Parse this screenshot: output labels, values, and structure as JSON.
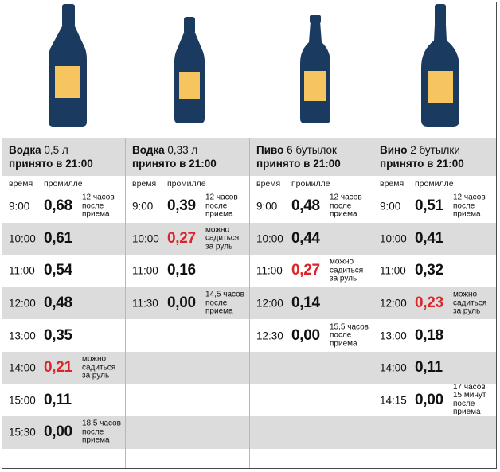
{
  "colors": {
    "bottle": "#1b3a5f",
    "label": "#f6c55f",
    "red": "#d9262b",
    "shade": "#dcdcdc"
  },
  "columns": [
    {
      "drink": "Водка",
      "amount": "0,5 л",
      "taken": "принято в 21:00",
      "col_time": "время",
      "col_promille": "промилле",
      "rows": [
        {
          "time": "9:00",
          "value": "0,68",
          "note": "12 часов после приема",
          "red": false
        },
        {
          "time": "10:00",
          "value": "0,61",
          "note": "",
          "red": false
        },
        {
          "time": "11:00",
          "value": "0,54",
          "note": "",
          "red": false
        },
        {
          "time": "12:00",
          "value": "0,48",
          "note": "",
          "red": false
        },
        {
          "time": "13:00",
          "value": "0,35",
          "note": "",
          "red": false
        },
        {
          "time": "14:00",
          "value": "0,21",
          "note": "можно садиться за руль",
          "red": true
        },
        {
          "time": "15:00",
          "value": "0,11",
          "note": "",
          "red": false
        },
        {
          "time": "15:30",
          "value": "0,00",
          "note": "18,5 часов после приема",
          "red": false
        }
      ]
    },
    {
      "drink": "Водка",
      "amount": "0,33 л",
      "taken": "принято в 21:00",
      "col_time": "время",
      "col_promille": "промилле",
      "rows": [
        {
          "time": "9:00",
          "value": "0,39",
          "note": "12 часов после приема",
          "red": false
        },
        {
          "time": "10:00",
          "value": "0,27",
          "note": "можно садиться за руль",
          "red": true
        },
        {
          "time": "11:00",
          "value": "0,16",
          "note": "",
          "red": false
        },
        {
          "time": "11:30",
          "value": "0,00",
          "note": "14,5 часов после приема",
          "red": false
        },
        {
          "time": "",
          "value": "",
          "note": "",
          "red": false
        },
        {
          "time": "",
          "value": "",
          "note": "",
          "red": false
        },
        {
          "time": "",
          "value": "",
          "note": "",
          "red": false
        },
        {
          "time": "",
          "value": "",
          "note": "",
          "red": false
        }
      ]
    },
    {
      "drink": "Пиво",
      "amount": "6 бутылок",
      "taken": "принято в 21:00",
      "col_time": "время",
      "col_promille": "промилле",
      "rows": [
        {
          "time": "9:00",
          "value": "0,48",
          "note": "12 часов после приема",
          "red": false
        },
        {
          "time": "10:00",
          "value": "0,44",
          "note": "",
          "red": false
        },
        {
          "time": "11:00",
          "value": "0,27",
          "note": "можно садиться за руль",
          "red": true
        },
        {
          "time": "12:00",
          "value": "0,14",
          "note": "",
          "red": false
        },
        {
          "time": "12:30",
          "value": "0,00",
          "note": "15,5 часов после приема",
          "red": false
        },
        {
          "time": "",
          "value": "",
          "note": "",
          "red": false
        },
        {
          "time": "",
          "value": "",
          "note": "",
          "red": false
        },
        {
          "time": "",
          "value": "",
          "note": "",
          "red": false
        }
      ]
    },
    {
      "drink": "Вино",
      "amount": "2 бутылки",
      "taken": "принято в 21:00",
      "col_time": "время",
      "col_promille": "промилле",
      "rows": [
        {
          "time": "9:00",
          "value": "0,51",
          "note": "12 часов после приема",
          "red": false
        },
        {
          "time": "10:00",
          "value": "0,41",
          "note": "",
          "red": false
        },
        {
          "time": "11:00",
          "value": "0,32",
          "note": "",
          "red": false
        },
        {
          "time": "12:00",
          "value": "0,23",
          "note": "можно садиться за руль",
          "red": true
        },
        {
          "time": "13:00",
          "value": "0,18",
          "note": "",
          "red": false
        },
        {
          "time": "14:00",
          "value": "0,11",
          "note": "",
          "red": false
        },
        {
          "time": "14:15",
          "value": "0,00",
          "note": "17 часов 15 минут после приема",
          "red": false
        },
        {
          "time": "",
          "value": "",
          "note": "",
          "red": false
        }
      ]
    }
  ]
}
